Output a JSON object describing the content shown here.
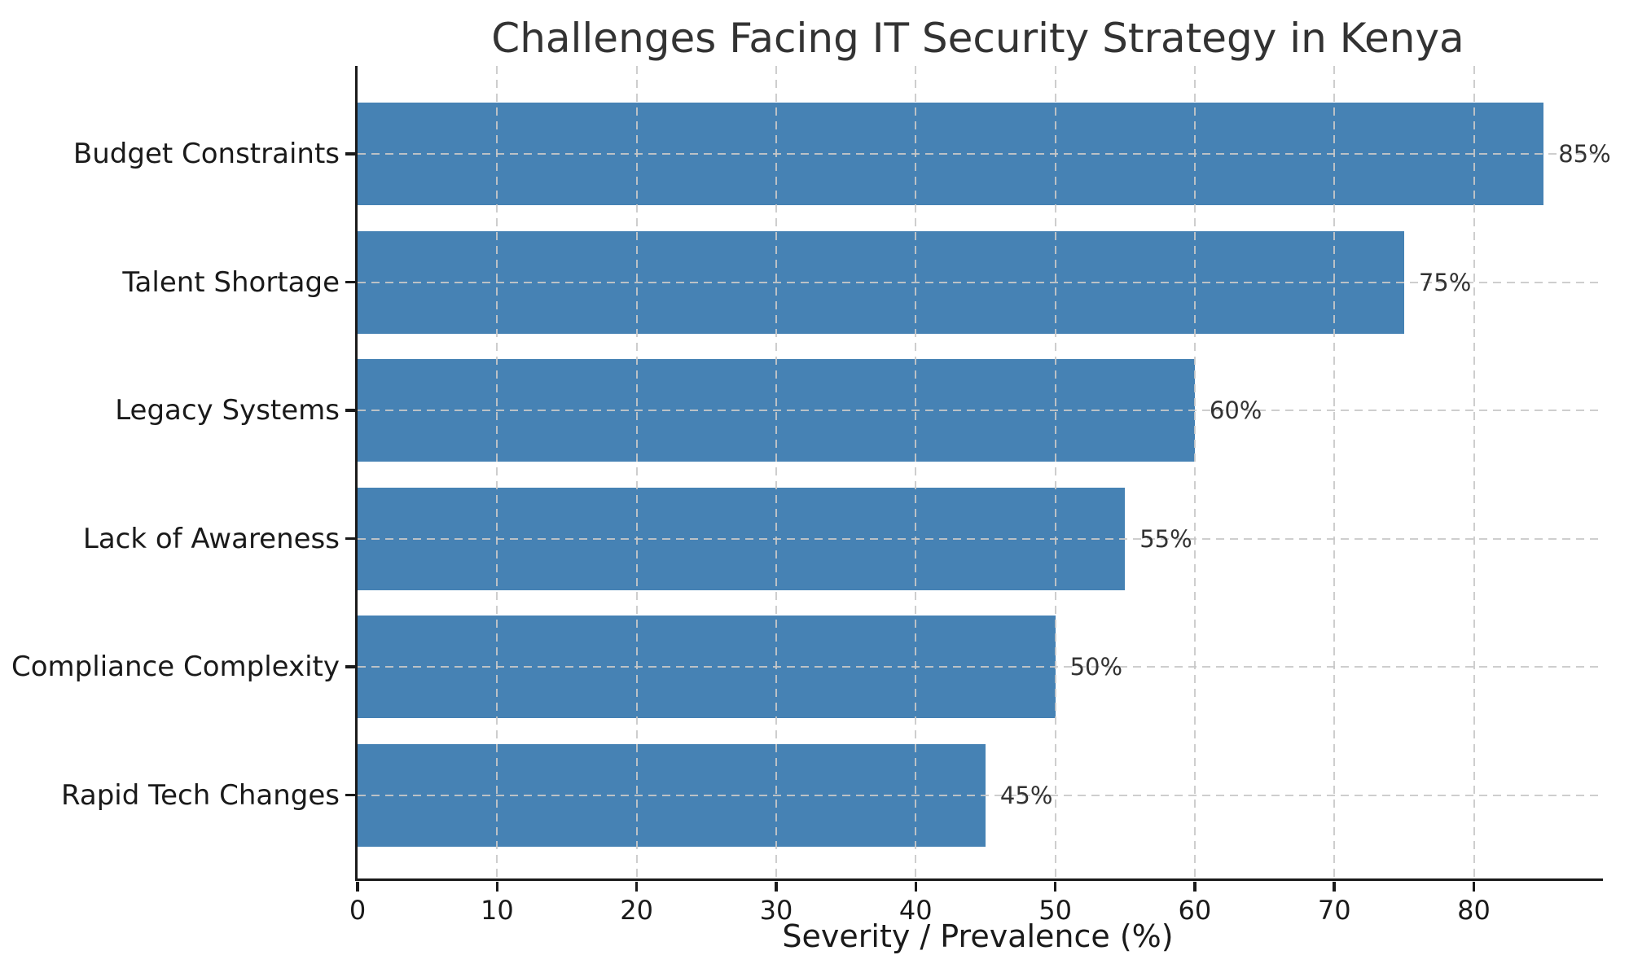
{
  "chart_data": {
    "type": "bar",
    "orientation": "horizontal",
    "title": "Challenges Facing IT Security Strategy in Kenya",
    "xlabel": "Severity / Prevalence (%)",
    "categories": [
      "Budget Constraints",
      "Talent Shortage",
      "Legacy Systems",
      "Lack of Awareness",
      "Compliance Complexity",
      "Rapid Tech Changes"
    ],
    "values": [
      85,
      75,
      60,
      55,
      50,
      45
    ],
    "value_labels": [
      "85%",
      "75%",
      "60%",
      "55%",
      "50%",
      "45%"
    ],
    "x_ticks": [
      0,
      10,
      20,
      30,
      40,
      50,
      60,
      70,
      80
    ],
    "x_tick_labels": [
      "0",
      "10",
      "20",
      "30",
      "40",
      "50",
      "60",
      "70",
      "80"
    ],
    "xlim": [
      0,
      89.25
    ],
    "grid": "dashed-both-axes-over-bars",
    "legend_position": "none",
    "colors": {
      "bar": "#4682B4",
      "grid": "#c8c8c8",
      "axis": "#1a1a1a",
      "title_text": "#333333",
      "value_label_text": "#333333",
      "background": "#ffffff"
    }
  }
}
